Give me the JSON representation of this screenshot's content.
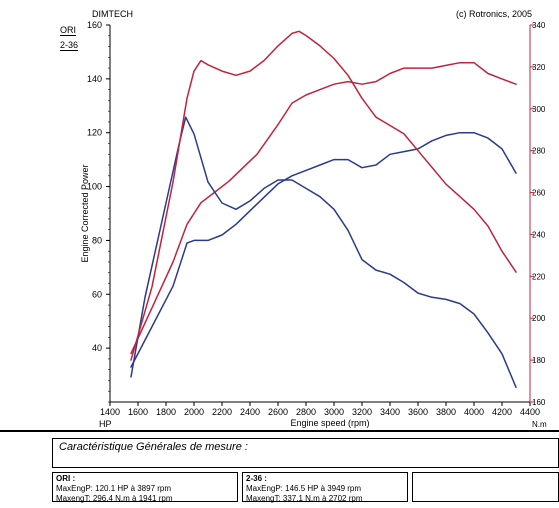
{
  "header": {
    "left": "DIMTECH",
    "right": "(c) Rotronics, 2005"
  },
  "legend": [
    "ORI",
    "2-36"
  ],
  "colors": {
    "ori": "#2a3a8f",
    "x236": "#c0243c",
    "axis_right": "#c0243c"
  },
  "chart_data": {
    "type": "line",
    "xlabel": "Engine speed (rpm)",
    "ylabel": "Engine Corrected Power",
    "y_unit": "HP",
    "y2_unit": "N.m",
    "xlim": [
      1400,
      4400
    ],
    "ylim": [
      20,
      160
    ],
    "y2lim": [
      160,
      340
    ],
    "x_ticks": [
      1400,
      1600,
      1800,
      2000,
      2200,
      2400,
      2600,
      2800,
      3000,
      3200,
      3400,
      3600,
      3800,
      4000,
      4200,
      4400
    ],
    "y_ticks": [
      40,
      60,
      80,
      100,
      120,
      140,
      160
    ],
    "y2_ticks": [
      160,
      180,
      200,
      220,
      240,
      260,
      280,
      300,
      320,
      340
    ],
    "series": [
      {
        "name": "ORI",
        "kind": "power",
        "x": [
          1550,
          1700,
          1850,
          1950,
          2000,
          2100,
          2200,
          2300,
          2400,
          2500,
          2600,
          2700,
          2800,
          2900,
          3000,
          3100,
          3200,
          3300,
          3400,
          3500,
          3600,
          3700,
          3800,
          3900,
          4000,
          4100,
          4200,
          4300
        ],
        "values": [
          33,
          48,
          63,
          79,
          80,
          80,
          82,
          86,
          91,
          96,
          101,
          104,
          106,
          108,
          110,
          110,
          107,
          108,
          112,
          113,
          114,
          117,
          119,
          120,
          120,
          118,
          114,
          105
        ]
      },
      {
        "name": "2-36",
        "kind": "power",
        "x": [
          1550,
          1700,
          1850,
          1950,
          2050,
          2150,
          2250,
          2350,
          2450,
          2600,
          2700,
          2800,
          2900,
          3000,
          3100,
          3200,
          3300,
          3400,
          3500,
          3600,
          3700,
          3800,
          3900,
          3950,
          4000,
          4100,
          4200,
          4300
        ],
        "values": [
          38,
          55,
          72,
          86,
          94,
          98,
          102,
          107,
          112,
          123,
          131,
          134,
          136,
          138,
          139,
          138,
          139,
          142,
          144,
          144,
          144,
          145,
          146,
          146,
          146,
          142,
          140,
          138
        ]
      },
      {
        "name": "ORI",
        "kind": "torque",
        "x": [
          1550,
          1650,
          1800,
          1900,
          1941,
          2000,
          2100,
          2200,
          2300,
          2400,
          2500,
          2600,
          2700,
          2800,
          2900,
          3000,
          3100,
          3200,
          3300,
          3400,
          3500,
          3600,
          3700,
          3800,
          3900,
          4000,
          4100,
          4200,
          4300
        ],
        "values": [
          172,
          210,
          255,
          285,
          296,
          288,
          265,
          255,
          252,
          256,
          262,
          266,
          266,
          262,
          258,
          252,
          242,
          228,
          223,
          221,
          217,
          212,
          210,
          209,
          207,
          202,
          193,
          183,
          167
        ]
      },
      {
        "name": "2-36",
        "kind": "torque",
        "x": [
          1550,
          1700,
          1850,
          1950,
          2000,
          2050,
          2100,
          2200,
          2300,
          2400,
          2500,
          2600,
          2700,
          2750,
          2800,
          2900,
          3000,
          3100,
          3200,
          3300,
          3400,
          3500,
          3600,
          3700,
          3800,
          3900,
          4000,
          4100,
          4200,
          4300
        ],
        "values": [
          180,
          215,
          265,
          305,
          318,
          323,
          321,
          318,
          316,
          318,
          323,
          330,
          336,
          337,
          335,
          330,
          324,
          316,
          305,
          296,
          292,
          288,
          280,
          272,
          264,
          258,
          252,
          244,
          232,
          222
        ]
      }
    ]
  },
  "summary": {
    "title": "Caractéristique Générales de mesure :",
    "ori": {
      "label": "ORI :",
      "line1": "MaxEngP: 120.1 HP à 3897 rpm",
      "line2": "MaxengT: 296.4 N.m à 1941 rpm"
    },
    "x236": {
      "label": "2-36 :",
      "line1": "MaxEngP: 146.5 HP à 3949 rpm",
      "line2": "MaxengT: 337.1 N.m à 2702 rpm"
    }
  }
}
